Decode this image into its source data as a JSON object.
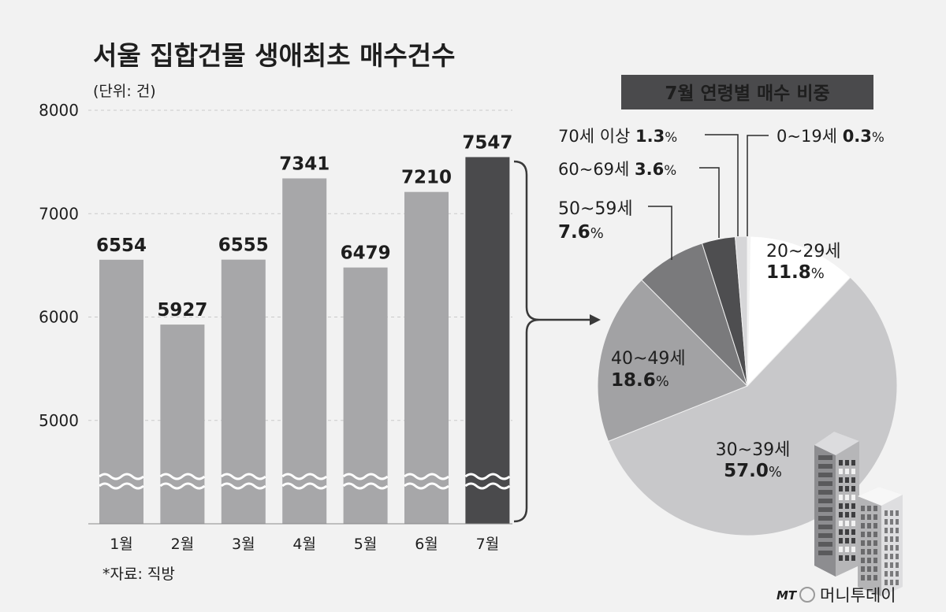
{
  "chart_data": [
    {
      "type": "bar",
      "title": "서울 집합건물 생애최초 매수건수",
      "unit_note": "(단위: 건)",
      "source_note": "*자료: 직방",
      "categories": [
        "1월",
        "2월",
        "3월",
        "4월",
        "5월",
        "6월",
        "7월"
      ],
      "values": [
        6554,
        5927,
        6555,
        7341,
        6479,
        7210,
        7547
      ],
      "value_labels": [
        "6554",
        "5927",
        "6555",
        "7341",
        "6479",
        "7210",
        "7547"
      ],
      "yticks": [
        "8000",
        "7000",
        "6000",
        "5000"
      ],
      "ylim": [
        4000,
        8000
      ],
      "axis_break": true,
      "grid": true,
      "colors": {
        "bar": "#a7a7a9",
        "highlight_bar": "#4a4a4c",
        "highlight_index": 6
      }
    },
    {
      "type": "pie",
      "title": "7월 연령별 매수 비중",
      "slices": [
        {
          "name": "0~19세",
          "value": 0.3,
          "value_label": "0.3",
          "color": "#f4f4f4"
        },
        {
          "name": "20~29세",
          "value": 11.8,
          "value_label": "11.8",
          "color": "#ffffff"
        },
        {
          "name": "30~39세",
          "value": 57.0,
          "value_label": "57.0",
          "color": "#c8c8ca"
        },
        {
          "name": "40~49세",
          "value": 18.6,
          "value_label": "18.6",
          "color": "#a2a2a4"
        },
        {
          "name": "50~59세",
          "value": 7.6,
          "value_label": "7.6",
          "color": "#7a7a7c"
        },
        {
          "name": "60~69세",
          "value": 3.6,
          "value_label": "3.6",
          "color": "#4e4e50"
        },
        {
          "name": "70세 이상",
          "value": 1.3,
          "value_label": "1.3",
          "color": "#d6d6d8"
        }
      ],
      "percent_suffix": "%"
    }
  ],
  "branding": {
    "logo_mark": "MT",
    "logo_text": "머니투데이"
  }
}
